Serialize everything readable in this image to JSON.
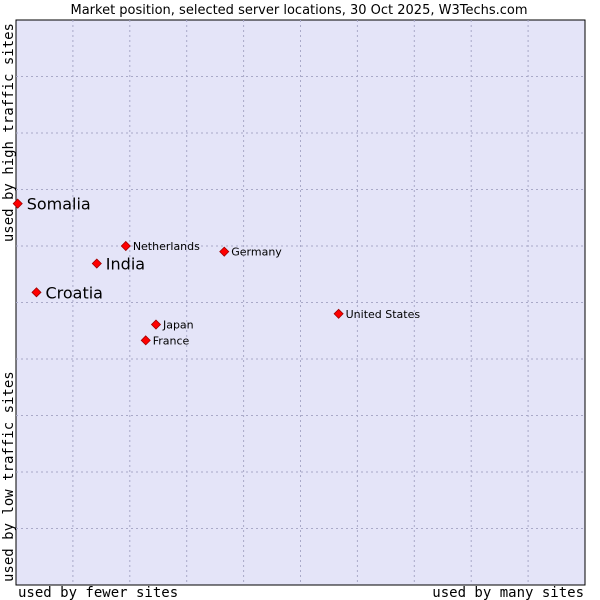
{
  "chart_data": {
    "type": "scatter",
    "title": "Market position, selected server locations, 30 Oct 2025, W3Techs.com",
    "xlabel_left": "used by fewer sites",
    "xlabel_right": "used by many sites",
    "ylabel_bottom": "used by low traffic sites",
    "ylabel_top": "used by high traffic sites",
    "xlim": [
      0,
      100
    ],
    "ylim": [
      0,
      100
    ],
    "grid": true,
    "colors": {
      "plot_bg": "#e4e4f8",
      "marker": "#ff0000",
      "marker_edge": "#a00000",
      "grid": "#a9a9c8"
    },
    "points": [
      {
        "name": "Somalia",
        "x": 0.3,
        "y": 67.5,
        "emphasis": true
      },
      {
        "name": "India",
        "x": 14.2,
        "y": 56.9,
        "emphasis": true
      },
      {
        "name": "Croatia",
        "x": 3.6,
        "y": 51.8,
        "emphasis": true
      },
      {
        "name": "Netherlands",
        "x": 19.3,
        "y": 60.0,
        "emphasis": false
      },
      {
        "name": "Germany",
        "x": 36.6,
        "y": 59.0,
        "emphasis": false
      },
      {
        "name": "United States",
        "x": 56.7,
        "y": 48.0,
        "emphasis": false
      },
      {
        "name": "Japan",
        "x": 24.6,
        "y": 46.1,
        "emphasis": false
      },
      {
        "name": "France",
        "x": 22.8,
        "y": 43.3,
        "emphasis": false
      }
    ]
  }
}
